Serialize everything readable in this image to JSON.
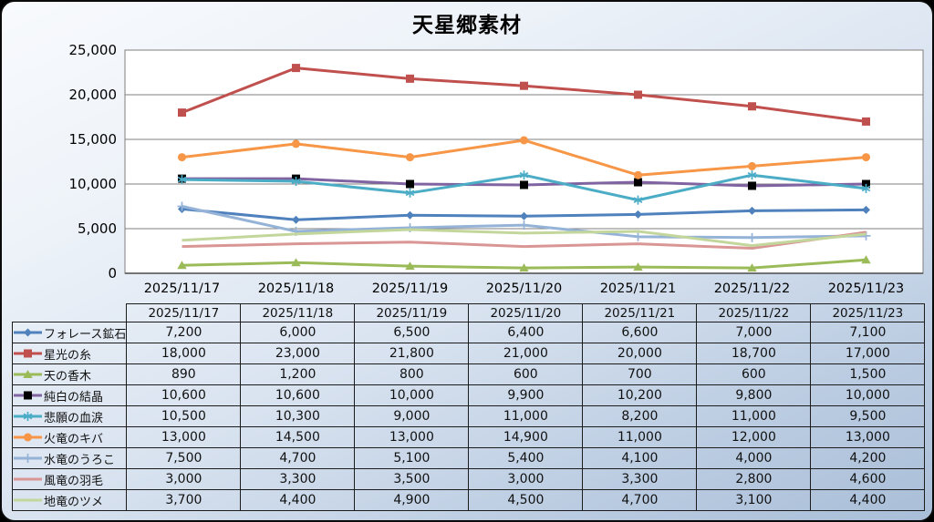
{
  "title": "天星郷素材",
  "chart_data": {
    "type": "line",
    "title": "天星郷素材",
    "categories": [
      "2025/11/17",
      "2025/11/18",
      "2025/11/19",
      "2025/11/20",
      "2025/11/21",
      "2025/11/22",
      "2025/11/23"
    ],
    "series": [
      {
        "name": "フォレース鉱石",
        "color": "#4F81BD",
        "marker": "diamond",
        "values": [
          7200,
          6000,
          6500,
          6400,
          6600,
          7000,
          7100
        ]
      },
      {
        "name": "星光の糸",
        "color": "#C0504D",
        "marker": "square",
        "values": [
          18000,
          23000,
          21800,
          21000,
          20000,
          18700,
          17000
        ]
      },
      {
        "name": "天の香木",
        "color": "#9BBB59",
        "marker": "triangle",
        "values": [
          890,
          1200,
          800,
          600,
          700,
          600,
          1500
        ]
      },
      {
        "name": "純白の結晶",
        "color": "#8064A2",
        "marker": "square",
        "marker_color": "#000000",
        "values": [
          10600,
          10600,
          10000,
          9900,
          10200,
          9800,
          10000
        ]
      },
      {
        "name": "悲願の血涙",
        "color": "#4BACC6",
        "marker": "asterisk",
        "values": [
          10500,
          10300,
          9000,
          11000,
          8200,
          11000,
          9500
        ]
      },
      {
        "name": "火竜のキバ",
        "color": "#F79646",
        "marker": "circle",
        "values": [
          13000,
          14500,
          13000,
          14900,
          11000,
          12000,
          13000
        ]
      },
      {
        "name": "水竜のうろこ",
        "color": "#95B3D7",
        "marker": "plus",
        "values": [
          7500,
          4700,
          5100,
          5400,
          4100,
          4000,
          4200
        ]
      },
      {
        "name": "風竜の羽毛",
        "color": "#D99694",
        "marker": "none",
        "values": [
          3000,
          3300,
          3500,
          3000,
          3300,
          2800,
          4600
        ]
      },
      {
        "name": "地竜のツメ",
        "color": "#C3D69B",
        "marker": "none",
        "values": [
          3700,
          4400,
          4900,
          4500,
          4700,
          3100,
          4400
        ]
      }
    ],
    "ylim": [
      0,
      25000
    ],
    "ytick_step": 5000,
    "ytick_labels": [
      "0",
      "5,000",
      "10,000",
      "15,000",
      "20,000",
      "25,000"
    ],
    "xlabel": "",
    "ylabel": "",
    "grid": true,
    "plot_background": "#FFFFFF",
    "gridline_color": "#7F7F7F",
    "legend_position": "table-rows-left"
  }
}
